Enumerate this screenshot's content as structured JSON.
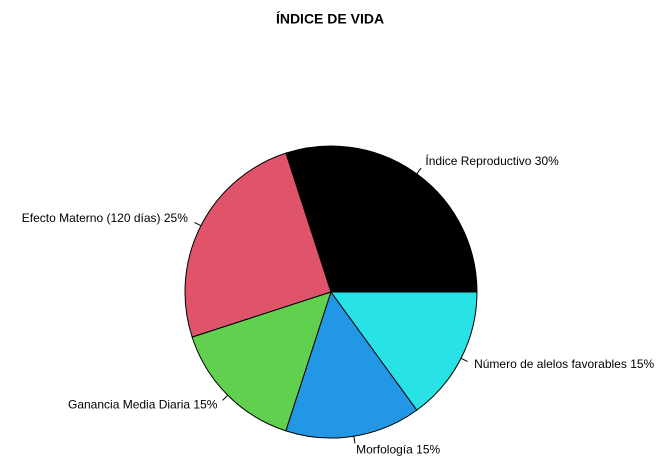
{
  "chart_data": {
    "type": "pie",
    "title": "ÍNDICE DE VIDA",
    "categories": [
      "Índice Reproductivo",
      "Efecto Materno (120 días)",
      "Ganancia Media Diaria",
      "Morfología",
      "Número de alelos favorables"
    ],
    "values": [
      30,
      25,
      15,
      15,
      15
    ],
    "value_labels": [
      "30%",
      "25%",
      "15%",
      "15%",
      "15%"
    ],
    "colors": [
      "#000000",
      "#DF536B",
      "#61D04F",
      "#2297E6",
      "#28E2E5"
    ]
  }
}
